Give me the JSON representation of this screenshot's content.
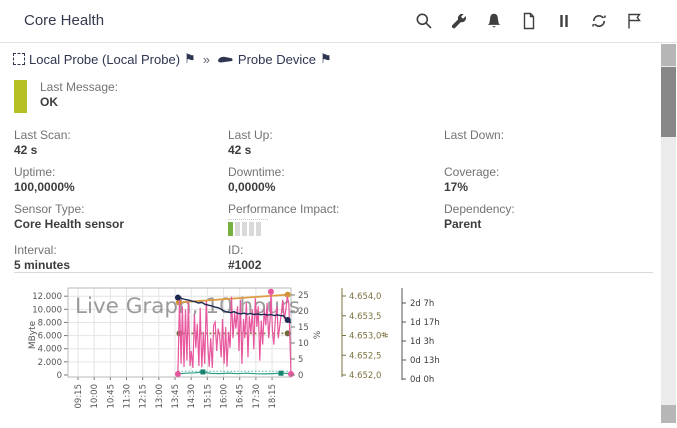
{
  "header": {
    "title": "Core Health",
    "tools": [
      "search",
      "wrench",
      "bell",
      "document",
      "pause",
      "refresh",
      "flag"
    ]
  },
  "breadcrumb": {
    "probe_label": "Local Probe (Local Probe)",
    "separator": "»",
    "device_label": "Probe Device"
  },
  "status": {
    "label": "Last Message:",
    "value": "OK",
    "bar_color": "#b5c122"
  },
  "info": {
    "cells": [
      {
        "label": "Last Scan:",
        "value": "42 s"
      },
      {
        "label": "Last Up:",
        "value": "42 s"
      },
      {
        "label": "Last Down:",
        "value": ""
      },
      {
        "label": "Uptime:",
        "value": "100,0000%"
      },
      {
        "label": "Downtime:",
        "value": "0,0000%"
      },
      {
        "label": "Coverage:",
        "value": "17%"
      },
      {
        "label": "Sensor Type:",
        "value": "Core Health sensor"
      },
      {
        "label": "Performance Impact:",
        "type": "impact",
        "level": 1,
        "segments": 5,
        "on_color": "#76b13f",
        "off_color": "#d9d9d9"
      },
      {
        "label": "Dependency:",
        "value": "Parent"
      },
      {
        "label": "Interval:",
        "value": "5 minutes"
      },
      {
        "label": "ID:",
        "value": "#1002"
      }
    ]
  },
  "chart_data": {
    "type": "line",
    "watermark": "Live Graph, 10 hours",
    "x_unit": "fraction of plot width (time axis 09:15 – 18:15 shown)",
    "x_ticks": [
      "09:15",
      "10:00",
      "10:45",
      "11:30",
      "12:15",
      "13:00",
      "13:45",
      "14:30",
      "15:15",
      "16:00",
      "16:45",
      "17:30",
      "18:15"
    ],
    "left_axis": {
      "label": "MByte",
      "ticks": [
        "12.000",
        "10.000",
        "8.000",
        "6.000",
        "4.000",
        "2.000",
        "0"
      ],
      "max": 12000,
      "min": 0
    },
    "right_axis": {
      "label": "%",
      "ticks": [
        "25",
        "20",
        "15",
        "10",
        "5",
        "0"
      ],
      "max": 25,
      "min": 0
    },
    "aux_axis_hash": {
      "label": "#",
      "color": "#7a7240",
      "ticks": [
        "4.654,0",
        "4.653,5",
        "4.653,0",
        "4.652,5",
        "4.652,0"
      ]
    },
    "aux_axis_time": {
      "label": "",
      "color": "#555555",
      "ticks": [
        "2d 7h",
        "1d 17h",
        "1d 3h",
        "0d 13h",
        "0d 0h"
      ]
    },
    "series": [
      {
        "name": "teal-dotted-band",
        "color": "#4fb3a0",
        "width": 1,
        "dash": "1.5,2",
        "marker": "none",
        "points": [
          [
            0.493,
            1.15
          ],
          [
            1.0,
            1.15
          ]
        ],
        "markers": []
      },
      {
        "name": "teal",
        "color": "#2e9e87",
        "width": 1.2,
        "dash": "",
        "marker": "square",
        "marker_color": "#15836d",
        "points": [
          [
            0.493,
            0.35
          ],
          [
            0.53,
            0.55
          ],
          [
            0.57,
            0.7
          ],
          [
            0.605,
            0.95
          ],
          [
            0.64,
            0.5
          ],
          [
            0.68,
            0.45
          ],
          [
            0.72,
            0.6
          ],
          [
            0.76,
            0.4
          ],
          [
            0.8,
            0.55
          ],
          [
            0.84,
            0.4
          ],
          [
            0.88,
            0.35
          ],
          [
            0.92,
            0.45
          ],
          [
            0.955,
            0.55
          ],
          [
            1.0,
            0.45
          ]
        ],
        "markers": [
          [
            0.605,
            0.95
          ],
          [
            0.955,
            0.55
          ]
        ]
      },
      {
        "name": "olive-flat",
        "color": "#8b8249",
        "width": 1.8,
        "dash": "2,2.5",
        "marker": "circle",
        "marker_color": "#6f683a",
        "points": [
          [
            0.493,
            13
          ],
          [
            1.0,
            13
          ]
        ],
        "markers": [
          [
            0.5,
            13
          ],
          [
            0.985,
            13
          ]
        ]
      },
      {
        "name": "orange",
        "color": "#dd9f45",
        "width": 1.8,
        "dash": "",
        "marker": "circle",
        "marker_color": "#d3933a",
        "points": [
          [
            0.493,
            22.7
          ],
          [
            0.6,
            23.2
          ],
          [
            0.7,
            23.7
          ],
          [
            0.8,
            24.2
          ],
          [
            0.9,
            24.7
          ],
          [
            0.985,
            25.1
          ],
          [
            1.0,
            25.15
          ]
        ],
        "markers": [
          [
            0.497,
            22.7
          ],
          [
            0.985,
            25.1
          ]
        ]
      },
      {
        "name": "pink",
        "color": "#e8579e",
        "width": 1.2,
        "dash": "",
        "marker": "circle",
        "marker_color": "#e8579e",
        "points": [
          [
            0.493,
            0.3
          ],
          [
            0.5,
            23.5
          ],
          [
            0.507,
            3.5
          ],
          [
            0.513,
            21.5
          ],
          [
            0.52,
            2.5
          ],
          [
            0.527,
            20.5
          ],
          [
            0.533,
            4.5
          ],
          [
            0.54,
            23.0
          ],
          [
            0.547,
            2.8
          ],
          [
            0.553,
            7.5
          ],
          [
            0.56,
            2.2
          ],
          [
            0.567,
            19.0
          ],
          [
            0.573,
            8.5
          ],
          [
            0.58,
            16.0
          ],
          [
            0.587,
            2.8
          ],
          [
            0.593,
            21.0
          ],
          [
            0.6,
            2.4
          ],
          [
            0.607,
            13.5
          ],
          [
            0.613,
            3.5
          ],
          [
            0.62,
            23.0
          ],
          [
            0.627,
            9.5
          ],
          [
            0.633,
            2.6
          ],
          [
            0.64,
            11.5
          ],
          [
            0.647,
            2.2
          ],
          [
            0.653,
            15.5
          ],
          [
            0.66,
            16.5
          ],
          [
            0.667,
            7.5
          ],
          [
            0.673,
            14.5
          ],
          [
            0.68,
            12.5
          ],
          [
            0.687,
            5.5
          ],
          [
            0.693,
            17.5
          ],
          [
            0.7,
            3.5
          ],
          [
            0.707,
            15.0
          ],
          [
            0.713,
            2.6
          ],
          [
            0.72,
            13.5
          ],
          [
            0.727,
            8.5
          ],
          [
            0.733,
            24.5
          ],
          [
            0.74,
            11.5
          ],
          [
            0.747,
            19.5
          ],
          [
            0.753,
            14.5
          ],
          [
            0.76,
            21.5
          ],
          [
            0.767,
            7.5
          ],
          [
            0.773,
            23.5
          ],
          [
            0.78,
            3.5
          ],
          [
            0.787,
            17.5
          ],
          [
            0.793,
            11.5
          ],
          [
            0.8,
            22.5
          ],
          [
            0.807,
            5.5
          ],
          [
            0.813,
            18.5
          ],
          [
            0.82,
            13.0
          ],
          [
            0.827,
            20.5
          ],
          [
            0.833,
            8.0
          ],
          [
            0.84,
            24.0
          ],
          [
            0.847,
            15.0
          ],
          [
            0.853,
            21.5
          ],
          [
            0.86,
            4.5
          ],
          [
            0.867,
            17.0
          ],
          [
            0.873,
            9.5
          ],
          [
            0.88,
            20.5
          ],
          [
            0.887,
            15.5
          ],
          [
            0.893,
            22.5
          ],
          [
            0.9,
            11.5
          ],
          [
            0.907,
            18.5
          ],
          [
            0.91,
            26.0
          ],
          [
            0.917,
            13.5
          ],
          [
            0.923,
            9.5
          ],
          [
            0.93,
            17.5
          ],
          [
            0.937,
            21.5
          ],
          [
            0.943,
            11.5
          ],
          [
            0.95,
            15.5
          ],
          [
            0.957,
            19.5
          ],
          [
            0.963,
            23.5
          ],
          [
            0.97,
            17.5
          ],
          [
            0.977,
            20.5
          ],
          [
            0.983,
            24.5
          ],
          [
            0.99,
            22.5
          ],
          [
            1.0,
            0.3
          ]
        ],
        "markers": [
          [
            0.493,
            0.3
          ],
          [
            0.91,
            26.0
          ],
          [
            1.0,
            0.3
          ]
        ]
      },
      {
        "name": "navy",
        "color": "#1c2950",
        "width": 1.4,
        "dash": "",
        "marker": "circle",
        "marker_color": "#1c2950",
        "points": [
          [
            0.493,
            24.2
          ],
          [
            0.51,
            23.9
          ],
          [
            0.525,
            23.6
          ],
          [
            0.54,
            23.4
          ],
          [
            0.555,
            23.1
          ],
          [
            0.57,
            22.9
          ],
          [
            0.585,
            22.5
          ],
          [
            0.6,
            22.7
          ],
          [
            0.615,
            22.1
          ],
          [
            0.63,
            21.8
          ],
          [
            0.645,
            21.6
          ],
          [
            0.66,
            21.2
          ],
          [
            0.675,
            21.0
          ],
          [
            0.69,
            20.4
          ],
          [
            0.7,
            20.0
          ],
          [
            0.715,
            19.7
          ],
          [
            0.73,
            19.5
          ],
          [
            0.745,
            19.8
          ],
          [
            0.76,
            19.3
          ],
          [
            0.775,
            19.1
          ],
          [
            0.79,
            19.3
          ],
          [
            0.805,
            19.0
          ],
          [
            0.82,
            19.2
          ],
          [
            0.835,
            18.9
          ],
          [
            0.85,
            19.1
          ],
          [
            0.865,
            18.8
          ],
          [
            0.88,
            19.0
          ],
          [
            0.895,
            18.7
          ],
          [
            0.91,
            18.9
          ],
          [
            0.925,
            18.6
          ],
          [
            0.94,
            18.8
          ],
          [
            0.955,
            18.5
          ],
          [
            0.965,
            18.6
          ],
          [
            0.975,
            17.8
          ],
          [
            0.985,
            17.2
          ],
          [
            1.0,
            16.3
          ]
        ],
        "markers": [
          [
            0.493,
            24.2
          ],
          [
            0.985,
            17.2
          ]
        ]
      }
    ]
  }
}
